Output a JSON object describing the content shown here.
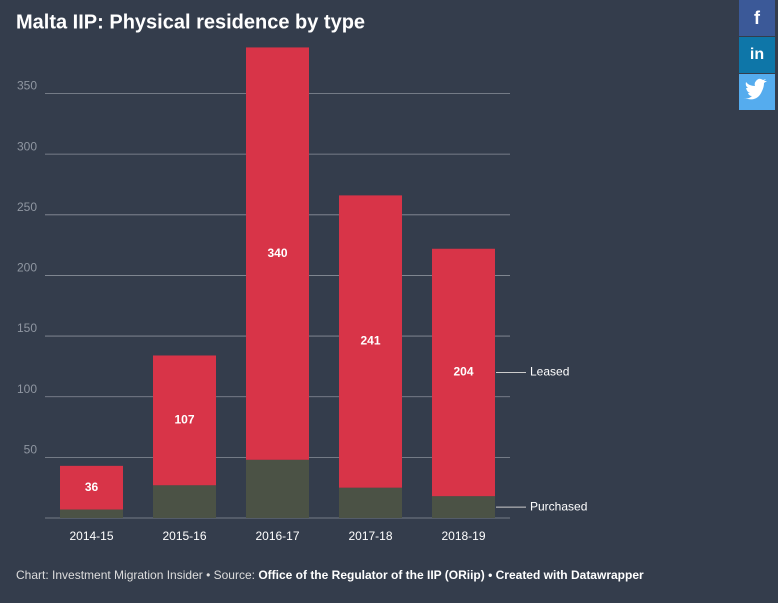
{
  "chart_data": {
    "type": "stacked-bar",
    "title": "Malta IIP: Physical residence by type",
    "categories": [
      "2014-15",
      "2015-16",
      "2016-17",
      "2017-18",
      "2018-19"
    ],
    "series": [
      {
        "name": "Purchased",
        "color": "#4b5245",
        "values": [
          7,
          27,
          48,
          25,
          18
        ]
      },
      {
        "name": "Leased",
        "color": "#d83448",
        "values": [
          36,
          107,
          340,
          241,
          204
        ]
      }
    ],
    "ylim": [
      0,
      390
    ],
    "yticks": [
      50,
      100,
      150,
      200,
      250,
      300,
      350
    ],
    "grid": true,
    "notes": [
      "Chart: Investment Migration Insider • Source:",
      "Office of the Regulator of the IIP (ORiip) • Created with Datawrapper"
    ]
  },
  "social": [
    "f",
    "in"
  ]
}
